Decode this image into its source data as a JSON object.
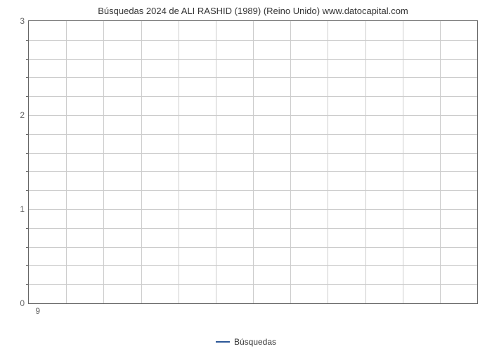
{
  "chart": {
    "type": "line",
    "title": "Búsquedas 2024 de ALI RASHID (1989) (Reino Unido) www.datocapital.com",
    "title_fontsize": 13,
    "title_color": "#333333",
    "background_color": "#ffffff",
    "plot_border_color": "#666666",
    "grid_color": "#cccccc",
    "y_axis": {
      "min": 0,
      "max": 3,
      "major_ticks": [
        0,
        1,
        2,
        3
      ],
      "minor_tick_count_between": 4,
      "label_fontsize": 12,
      "label_color": "#666666"
    },
    "x_axis": {
      "ticks": [
        "9"
      ],
      "label_fontsize": 12,
      "label_color": "#666666",
      "vertical_gridlines": 12
    },
    "series": [
      {
        "name": "Búsquedas",
        "color": "#2b5797",
        "line_width": 2,
        "data": []
      }
    ],
    "legend": {
      "position": "bottom-center",
      "fontsize": 12,
      "color": "#333333"
    }
  }
}
